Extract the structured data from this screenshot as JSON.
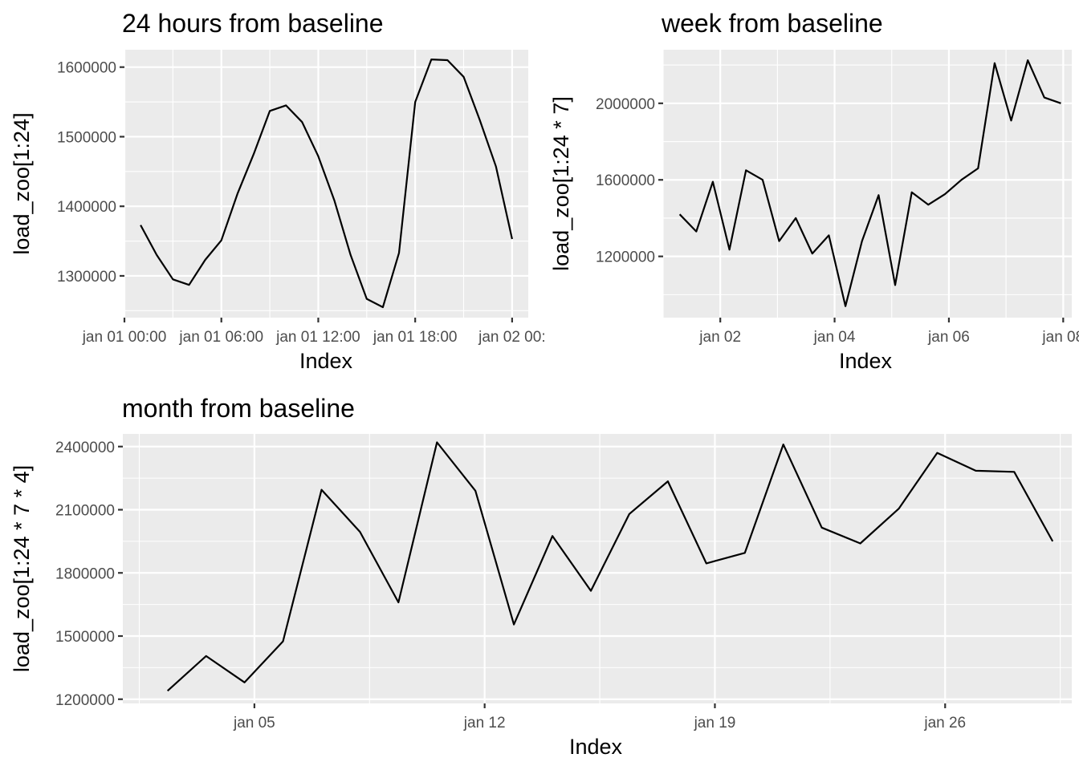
{
  "chart_data": [
    {
      "type": "line",
      "title": "24 hours from baseline",
      "xlabel": "Index",
      "ylabel": "load_zoo[1:24]",
      "x_ticks": [
        "jan 01 00:00",
        "jan 01 06:00",
        "jan 01 12:00",
        "jan 01 18:00",
        "jan 02 00:"
      ],
      "y_ticks": [
        1300000,
        1400000,
        1500000,
        1600000
      ],
      "ylim": [
        1240000,
        1625000
      ],
      "x_range_hours": [
        0,
        25
      ],
      "series": [
        {
          "x_hours": [
            1,
            2,
            3,
            4,
            5,
            6,
            7,
            8,
            9,
            10,
            11,
            12,
            13,
            14,
            15,
            16,
            17,
            18,
            19,
            20,
            21,
            22,
            23,
            24
          ],
          "values": [
            1373000,
            1330000,
            1295000,
            1287000,
            1323000,
            1351000,
            1418000,
            1475000,
            1537000,
            1545000,
            1521000,
            1472000,
            1408000,
            1330000,
            1267000,
            1255000,
            1333000,
            1550000,
            1611000,
            1610000,
            1586000,
            1524000,
            1457000,
            1353000
          ]
        }
      ]
    },
    {
      "type": "line",
      "title": "week from baseline",
      "xlabel": "Index",
      "ylabel": "load_zoo[1:24 * 7]",
      "x_ticks": [
        "jan 02",
        "jan 04",
        "jan 06",
        "jan 08"
      ],
      "y_ticks": [
        1200000,
        1600000,
        2000000
      ],
      "ylim": [
        880000,
        2280000
      ],
      "x_range_days": [
        1.0,
        8.15
      ],
      "series": [
        {
          "x_days": [
            1.29,
            1.58,
            1.87,
            2.16,
            2.45,
            2.74,
            3.03,
            3.32,
            3.61,
            3.9,
            4.19,
            4.48,
            4.77,
            5.06,
            5.35,
            5.64,
            5.93,
            6.22,
            6.51,
            6.8,
            7.09,
            7.38,
            7.67,
            7.96
          ],
          "values": [
            1420000,
            1330000,
            1590000,
            1235000,
            1650000,
            1600000,
            1280000,
            1400000,
            1215000,
            1310000,
            940000,
            1280000,
            1520000,
            1050000,
            1535000,
            1470000,
            1525000,
            1600000,
            1660000,
            2210000,
            1910000,
            2225000,
            2030000,
            2000000
          ]
        }
      ]
    },
    {
      "type": "line",
      "title": "month from baseline",
      "xlabel": "Index",
      "ylabel": "load_zoo[1:24 * 7 * 4]",
      "x_ticks": [
        "jan 05",
        "jan 12",
        "jan 19",
        "jan 26"
      ],
      "y_ticks": [
        1200000,
        1500000,
        1800000,
        2100000,
        2400000
      ],
      "ylim": [
        1180000,
        2460000
      ],
      "x_range_days": [
        1.0,
        29.85
      ],
      "series": [
        {
          "x_days": [
            2.36,
            3.53,
            4.7,
            5.87,
            7.04,
            8.21,
            9.38,
            10.55,
            11.72,
            12.89,
            14.06,
            15.23,
            16.4,
            17.57,
            18.74,
            19.91,
            21.08,
            22.25,
            23.42,
            24.59,
            25.76,
            26.93,
            28.1,
            29.27
          ],
          "values": [
            1240000,
            1405000,
            1280000,
            1475000,
            2195000,
            1995000,
            1660000,
            2420000,
            2190000,
            1555000,
            1975000,
            1715000,
            2080000,
            2235000,
            1845000,
            1895000,
            2410000,
            2015000,
            1940000,
            2105000,
            2370000,
            2285000,
            2280000,
            1950000
          ]
        }
      ]
    }
  ]
}
